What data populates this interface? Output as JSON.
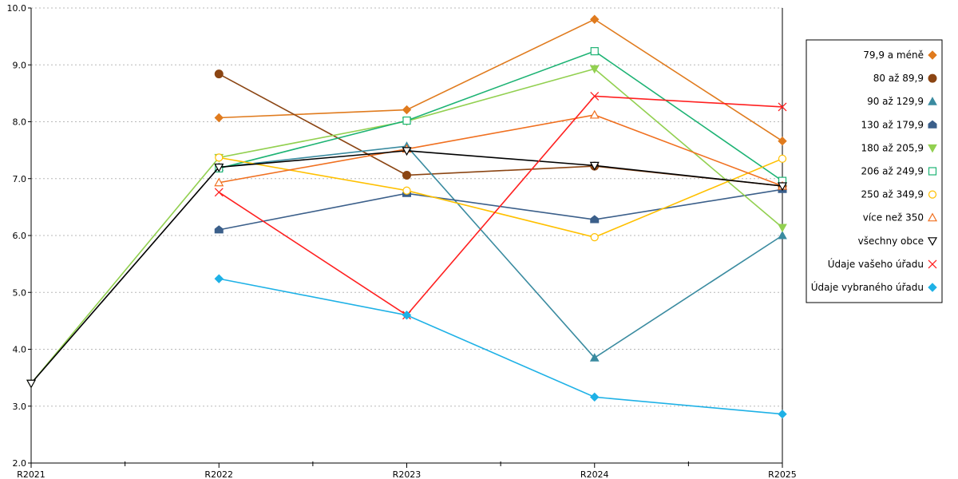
{
  "chart_data": {
    "type": "line",
    "title": "",
    "xlabel": "",
    "ylabel": "",
    "categories": [
      "R2021",
      "R2022",
      "R2023",
      "R2024",
      "R2025"
    ],
    "ylim": [
      2.0,
      10.0
    ],
    "yticks": [
      "2.0",
      "3.0",
      "4.0",
      "5.0",
      "6.0",
      "7.0",
      "8.0",
      "9.0",
      "10.0"
    ],
    "grid": "horizontal dotted",
    "legend_position": "right",
    "series": [
      {
        "name": "79,9 a méně",
        "color": "#E07B1E",
        "marker": "diamond-filled",
        "values": [
          null,
          8.07,
          8.21,
          9.8,
          7.66
        ]
      },
      {
        "name": "80 až 89,9",
        "color": "#8B4513",
        "marker": "circle-filled",
        "values": [
          null,
          8.84,
          7.06,
          7.22,
          6.87
        ]
      },
      {
        "name": "90 až 129,9",
        "color": "#3A8BA0",
        "marker": "triangle-filled",
        "values": [
          null,
          7.2,
          7.57,
          3.85,
          6.0
        ]
      },
      {
        "name": "130 až 179,9",
        "color": "#3B5F8A",
        "marker": "pentagon-filled",
        "values": [
          null,
          6.1,
          6.74,
          6.28,
          6.81
        ]
      },
      {
        "name": "180 až 205,9",
        "color": "#92D050",
        "marker": "triangle-down-filled",
        "values": [
          3.4,
          7.37,
          8.01,
          8.93,
          6.14
        ]
      },
      {
        "name": "206 až 249,9",
        "color": "#1DB374",
        "marker": "square-open",
        "values": [
          null,
          7.18,
          8.02,
          9.24,
          6.96
        ]
      },
      {
        "name": "250 až 349,9",
        "color": "#FFC000",
        "marker": "circle-open",
        "values": [
          null,
          7.37,
          6.79,
          5.97,
          7.35
        ]
      },
      {
        "name": "více než 350",
        "color": "#F07020",
        "marker": "triangle-open",
        "values": [
          null,
          6.93,
          7.52,
          8.12,
          6.87
        ]
      },
      {
        "name": "všechny obce",
        "color": "#000000",
        "marker": "triangle-down-open",
        "values": [
          3.4,
          7.2,
          7.49,
          7.23,
          6.87
        ]
      },
      {
        "name": "Údaje vašeho úřadu",
        "color": "#FF2020",
        "marker": "x",
        "values": [
          null,
          6.76,
          4.6,
          8.45,
          8.26
        ]
      },
      {
        "name": "Údaje vybraného úřadu",
        "color": "#1EB1E6",
        "marker": "diamond-filled",
        "values": [
          null,
          5.24,
          4.6,
          3.16,
          2.86
        ]
      }
    ]
  }
}
